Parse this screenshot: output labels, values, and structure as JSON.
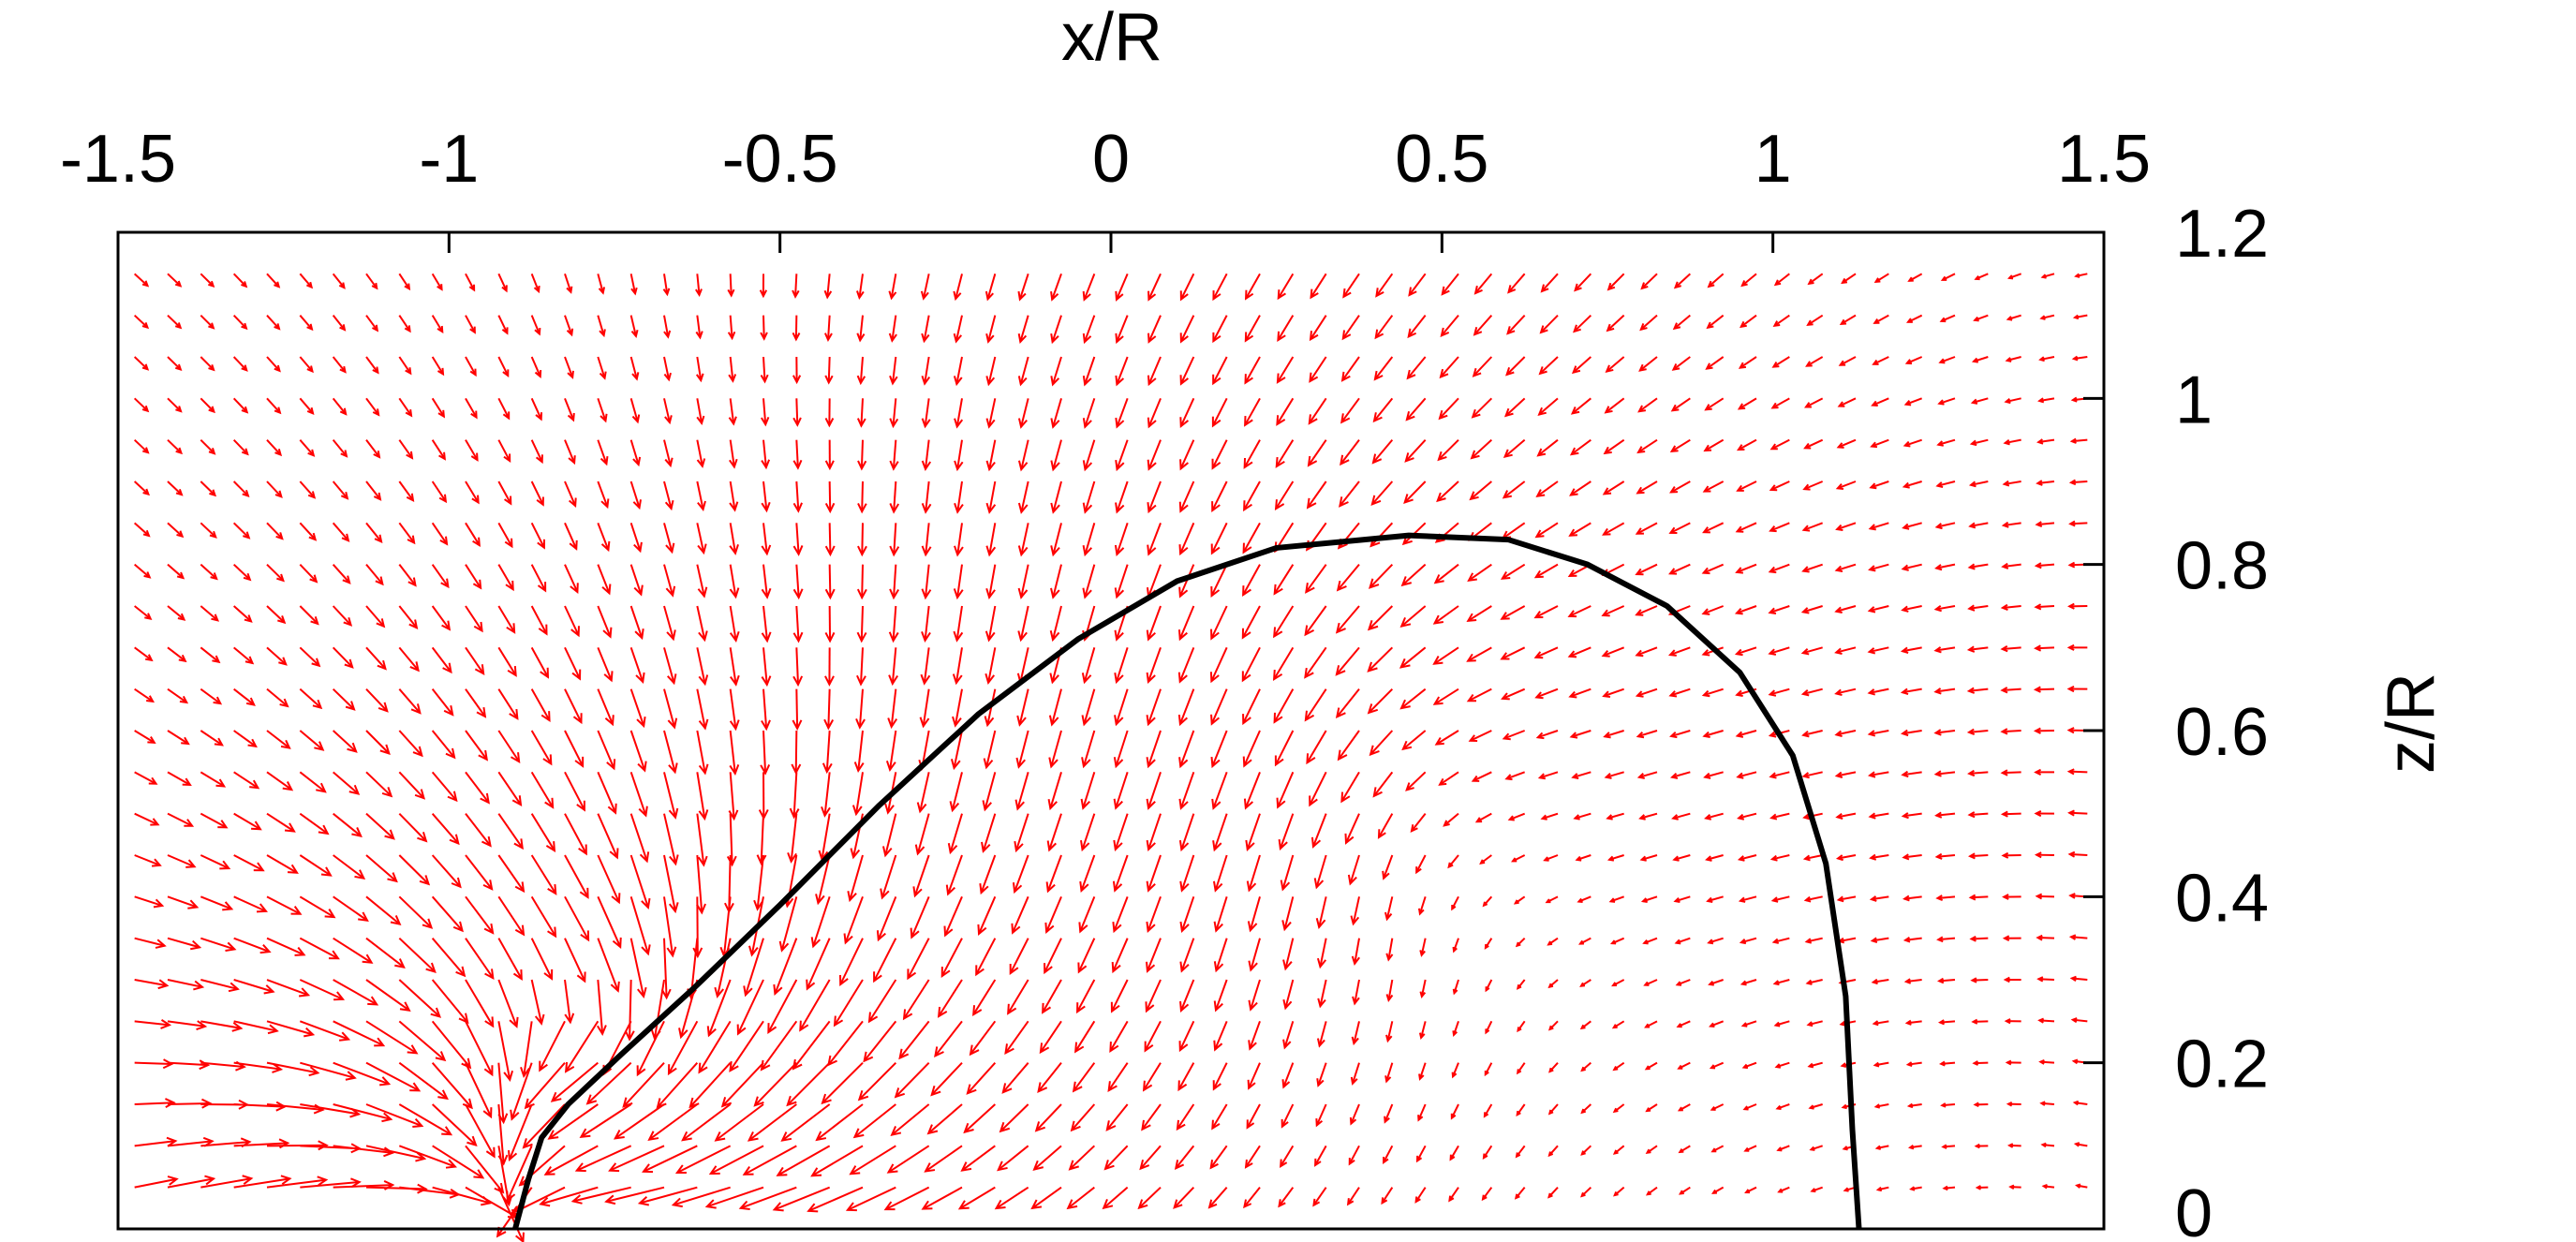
{
  "chart_data": {
    "type": "vector-field",
    "xlabel": "x/R",
    "ylabel": "z/R",
    "xlim": [
      -1.5,
      1.5
    ],
    "ylim": [
      0,
      1.2
    ],
    "x_ticks": [
      "-1.5",
      "-1",
      "-0.5",
      "0",
      "0.5",
      "1",
      "1.5"
    ],
    "x_tick_values": [
      -1.5,
      -1,
      -0.5,
      0,
      0.5,
      1,
      1.5
    ],
    "y_ticks": [
      "0",
      "0.2",
      "0.4",
      "0.6",
      "0.8",
      "1",
      "1.2"
    ],
    "y_tick_values": [
      0,
      0.2,
      0.4,
      0.6,
      0.8,
      1.0,
      1.2
    ],
    "x_axis_position": "top",
    "y_axis_position": "right",
    "grid": false,
    "series": [
      {
        "kind": "interface-curve",
        "color": "#000000",
        "points": [
          [
            -0.9,
            0.0
          ],
          [
            -0.88,
            0.06
          ],
          [
            -0.86,
            0.11
          ],
          [
            -0.82,
            0.15
          ],
          [
            -0.74,
            0.21
          ],
          [
            -0.63,
            0.29
          ],
          [
            -0.5,
            0.39
          ],
          [
            -0.35,
            0.51
          ],
          [
            -0.2,
            0.62
          ],
          [
            -0.05,
            0.71
          ],
          [
            0.1,
            0.78
          ],
          [
            0.25,
            0.82
          ],
          [
            0.45,
            0.835
          ],
          [
            0.6,
            0.83
          ],
          [
            0.72,
            0.8
          ],
          [
            0.84,
            0.75
          ],
          [
            0.95,
            0.67
          ],
          [
            1.03,
            0.57
          ],
          [
            1.08,
            0.44
          ],
          [
            1.11,
            0.28
          ],
          [
            1.12,
            0.12
          ],
          [
            1.13,
            0.0
          ]
        ]
      },
      {
        "kind": "velocity-vectors",
        "color": "#ff0000",
        "grid_spacing": [
          0.05,
          0.05
        ],
        "features": [
          {
            "type": "sink",
            "x": -0.9,
            "z": 0.0,
            "strength": 1.0
          },
          {
            "type": "vortex",
            "x": -0.75,
            "z": 0.25,
            "strength": 0.25
          },
          {
            "type": "recirculation",
            "x": 0.45,
            "z": 0.5,
            "strength": 0.15
          }
        ]
      }
    ]
  }
}
